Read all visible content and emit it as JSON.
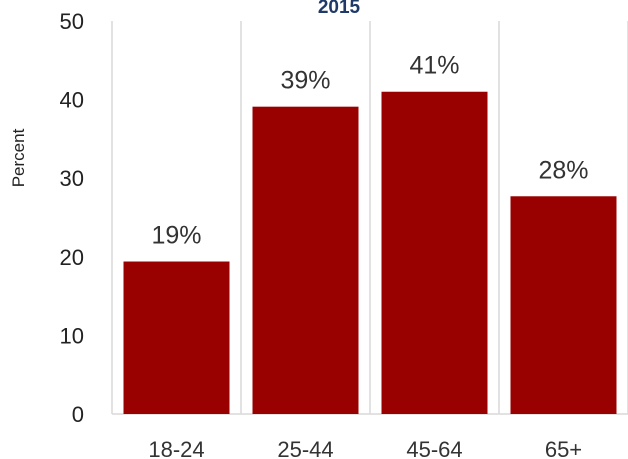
{
  "chart_data": {
    "type": "bar",
    "title": "2015",
    "xlabel": "",
    "ylabel": "Percent",
    "categories": [
      "18-24",
      "25-44",
      "45-64",
      "65+"
    ],
    "values": [
      19.4,
      39.1,
      41.0,
      27.7
    ],
    "data_labels": [
      "19%",
      "39%",
      "41%",
      "28%"
    ],
    "ylim": [
      0,
      50
    ],
    "yticks": [
      0,
      10,
      20,
      30,
      40,
      50
    ],
    "grid": "vertical separators between categories",
    "legend": "none",
    "bar_color": "#990000",
    "title_color": "#1f3a68"
  }
}
